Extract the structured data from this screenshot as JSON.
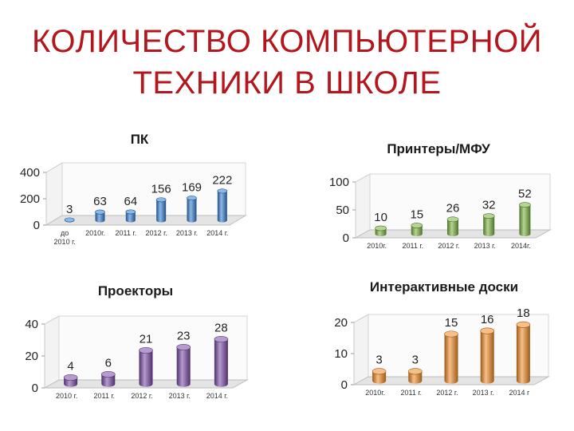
{
  "slide": {
    "title_line1": "КОЛИЧЕСТВО КОМПЬЮТЕРНОЙ",
    "title_line2": "ТЕХНИКИ В ШКОЛЕ"
  },
  "colors": {
    "title": "#b3171d",
    "pc": "#2f7dd1",
    "printers": "#7ab33f",
    "projectors": "#7a49a6",
    "boards": "#f28a25"
  },
  "chart_data": [
    {
      "id": "pc",
      "type": "bar",
      "title": "ПК",
      "categories": [
        "до 2010 г.",
        "2010г.",
        "2011 г.",
        "2012 г.",
        "2013 г.",
        "2014 г."
      ],
      "values": [
        3,
        63,
        64,
        156,
        169,
        222
      ],
      "ylim": [
        0,
        400
      ],
      "yticks": [
        0,
        200,
        400
      ],
      "grid": false,
      "color": "#2f7dd1"
    },
    {
      "id": "printers",
      "type": "bar",
      "title": "Принтеры/МФУ",
      "categories": [
        "2010г.",
        "2011 г.",
        "2012 г.",
        "2013 г.",
        "2014г."
      ],
      "values": [
        10,
        15,
        26,
        32,
        52
      ],
      "ylim": [
        0,
        100
      ],
      "yticks": [
        0,
        50,
        100
      ],
      "grid": false,
      "color": "#7ab33f"
    },
    {
      "id": "projectors",
      "type": "bar",
      "title": "Проекторы",
      "categories": [
        "2010 г.",
        "2011 г.",
        "2012 г.",
        "2013 г.",
        "2014 г."
      ],
      "values": [
        4,
        6,
        21,
        23,
        28
      ],
      "ylim": [
        0,
        40
      ],
      "yticks": [
        0,
        20,
        40
      ],
      "grid": false,
      "color": "#7a49a6"
    },
    {
      "id": "boards",
      "type": "bar",
      "title": "Интерактивные доски",
      "categories": [
        "2010г.",
        "2011 г.",
        "2012 г.",
        "2013 г.",
        "2014 г"
      ],
      "values": [
        3,
        3,
        15,
        16,
        18
      ],
      "ylim": [
        0,
        20
      ],
      "yticks": [
        0,
        10,
        20
      ],
      "grid": false,
      "color": "#f28a25"
    }
  ]
}
